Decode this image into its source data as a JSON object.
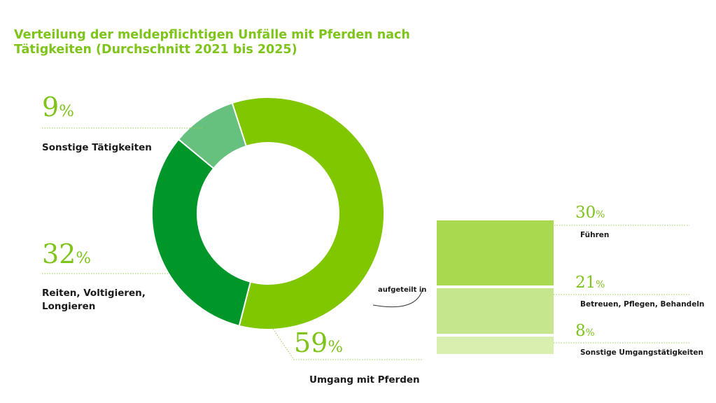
{
  "title": "Verteilung der meldepflichtigen Unfälle mit Pferden nach Tätigkeiten (Durchschnitt 2021 bis 2025)",
  "split_label": "aufgeteilt in",
  "unit": "%",
  "colors": {
    "accent": "#7ec41a",
    "umgang": "#80c700",
    "reiten": "#00962a",
    "sonstige": "#66c17e",
    "fuehren": "#a8d94f",
    "betreuen": "#c5e68c",
    "sonstige_umgang": "#d8efb0"
  },
  "chart_data": [
    {
      "type": "pie",
      "title": "Verteilung der meldepflichtigen Unfälle mit Pferden nach Tätigkeiten (Durchschnitt 2021 bis 2025)",
      "slices": [
        {
          "label": "Umgang mit Pferden",
          "value": 59,
          "display": "59",
          "color": "#80c700"
        },
        {
          "label": "Reiten, Voltigieren, Longieren",
          "value": 32,
          "display": "32",
          "color": "#00962a"
        },
        {
          "label": "Sonstige Tätigkeiten",
          "value": 9,
          "display": "9",
          "color": "#66c17e"
        }
      ]
    },
    {
      "type": "bar",
      "stacked": true,
      "parent": "Umgang mit Pferden",
      "categories": [
        "Führen",
        "Betreuen, Pflegen, Behandeln",
        "Sonstige Umgangstätigkeiten"
      ],
      "values": [
        30,
        21,
        8
      ],
      "display": [
        "30",
        "21",
        "8"
      ],
      "colors": [
        "#a8d94f",
        "#c5e68c",
        "#d8efb0"
      ]
    }
  ]
}
